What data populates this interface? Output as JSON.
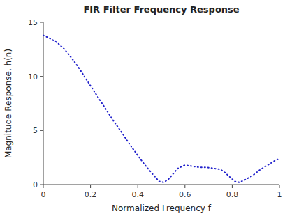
{
  "chart_data": {
    "type": "line",
    "title": "FIR Filter Frequency Response",
    "xlabel": "Normalized Frequency f",
    "ylabel": "Magnitude Response, h(n)",
    "x": [
      0.0,
      0.03,
      0.06,
      0.09,
      0.12,
      0.15,
      0.18,
      0.21,
      0.24,
      0.27,
      0.3,
      0.33,
      0.36,
      0.39,
      0.42,
      0.45,
      0.47,
      0.49,
      0.51,
      0.53,
      0.55,
      0.57,
      0.6,
      0.63,
      0.66,
      0.69,
      0.72,
      0.75,
      0.77,
      0.79,
      0.81,
      0.83,
      0.86,
      0.89,
      0.92,
      0.95,
      0.98,
      1.0
    ],
    "values": [
      13.8,
      13.5,
      13.1,
      12.5,
      11.7,
      10.8,
      9.8,
      8.8,
      7.8,
      6.8,
      5.8,
      4.9,
      3.9,
      3.0,
      2.1,
      1.3,
      0.8,
      0.3,
      0.2,
      0.5,
      1.0,
      1.5,
      1.8,
      1.7,
      1.6,
      1.6,
      1.5,
      1.4,
      1.1,
      0.7,
      0.3,
      0.2,
      0.5,
      0.9,
      1.4,
      1.8,
      2.2,
      2.4
    ],
    "color": "#2222CC",
    "line_style": "dotted",
    "xlim": [
      0,
      1
    ],
    "ylim": [
      0,
      15
    ],
    "xticks": [
      0,
      0.2,
      0.4,
      0.6,
      0.8,
      1
    ],
    "yticks": [
      0,
      5,
      10,
      15
    ],
    "grid": false
  }
}
